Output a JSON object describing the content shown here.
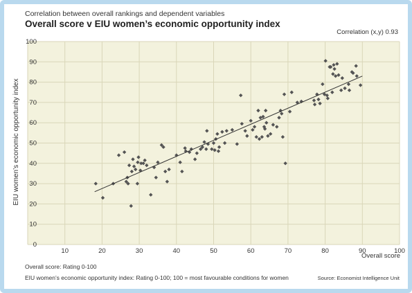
{
  "header": {
    "subtitle": "Correlation between overall rankings and dependent variables",
    "title": "Overall score v EIU women’s economic opportunity index",
    "correlation": "Correlation (x,y) 0.93"
  },
  "footer": {
    "note1": "Overall score: Rating 0-100",
    "note2": "EIU women’s economic opportunity index: Rating 0-100; 100 = most favourable conditions for women",
    "source": "Source: Economist Intelligence Unit"
  },
  "colors": {
    "plot_bg": "#f3f2dd",
    "grid": "#d9d6b8",
    "marker": "#545454",
    "trend": "#333333",
    "frame": "#b9d9ee"
  },
  "chart_data": {
    "type": "scatter",
    "xlabel": "Overall score",
    "ylabel": "EIU women’s economic opportunity index",
    "xlim": [
      0,
      100
    ],
    "ylim": [
      0,
      100
    ],
    "xticks": [
      0,
      10,
      20,
      30,
      40,
      50,
      60,
      70,
      80,
      90,
      100
    ],
    "yticks": [
      0,
      10,
      20,
      30,
      40,
      50,
      60,
      70,
      80,
      90,
      100
    ],
    "grid": true,
    "trendline": {
      "x": [
        18,
        90
      ],
      "y": [
        26,
        83
      ]
    },
    "points": [
      [
        18.3,
        30
      ],
      [
        20.2,
        23
      ],
      [
        23,
        30
      ],
      [
        24.5,
        44
      ],
      [
        26,
        45.5
      ],
      [
        26.5,
        31
      ],
      [
        26.8,
        33
      ],
      [
        27,
        30
      ],
      [
        27.3,
        39
      ],
      [
        27.8,
        19
      ],
      [
        28,
        36
      ],
      [
        28.3,
        42
      ],
      [
        28.6,
        38.5
      ],
      [
        29,
        37
      ],
      [
        29.5,
        30
      ],
      [
        29.6,
        40.5
      ],
      [
        29.8,
        43
      ],
      [
        30.3,
        36.5
      ],
      [
        30.5,
        40
      ],
      [
        31.1,
        40
      ],
      [
        31.5,
        41.5
      ],
      [
        32,
        39
      ],
      [
        33.1,
        24.5
      ],
      [
        34,
        38
      ],
      [
        34.5,
        33
      ],
      [
        35,
        40.5
      ],
      [
        36,
        49
      ],
      [
        36.5,
        48
      ],
      [
        37,
        36
      ],
      [
        37.5,
        31
      ],
      [
        38,
        37
      ],
      [
        40,
        44
      ],
      [
        41,
        40.5
      ],
      [
        41.5,
        36
      ],
      [
        42.3,
        47.5
      ],
      [
        42.5,
        46
      ],
      [
        43.5,
        45.5
      ],
      [
        44,
        47
      ],
      [
        45,
        42
      ],
      [
        45.5,
        45
      ],
      [
        46.5,
        47
      ],
      [
        47,
        48
      ],
      [
        47.5,
        50.5
      ],
      [
        48,
        47
      ],
      [
        48.2,
        56
      ],
      [
        48.5,
        49.5
      ],
      [
        49.5,
        47
      ],
      [
        50,
        50
      ],
      [
        50.3,
        46.5
      ],
      [
        50.6,
        52
      ],
      [
        51,
        54.5
      ],
      [
        51.3,
        46
      ],
      [
        51.5,
        48
      ],
      [
        52.3,
        55.5
      ],
      [
        53,
        50
      ],
      [
        53.5,
        56
      ],
      [
        55,
        56.5
      ],
      [
        56.3,
        49.5
      ],
      [
        57.3,
        73.5
      ],
      [
        57.6,
        59.5
      ],
      [
        58.5,
        56
      ],
      [
        59,
        53.5
      ],
      [
        60,
        61
      ],
      [
        60.5,
        56.5
      ],
      [
        61,
        58
      ],
      [
        61.5,
        53
      ],
      [
        62,
        66
      ],
      [
        62.3,
        52
      ],
      [
        62.6,
        62.5
      ],
      [
        63,
        53
      ],
      [
        63.3,
        63
      ],
      [
        63.6,
        58
      ],
      [
        63.8,
        57
      ],
      [
        64,
        66
      ],
      [
        64.2,
        60
      ],
      [
        64.6,
        53.5
      ],
      [
        65.3,
        54.5
      ],
      [
        66,
        59
      ],
      [
        67,
        58
      ],
      [
        67.6,
        62.5
      ],
      [
        68,
        66
      ],
      [
        68.3,
        64.5
      ],
      [
        68.6,
        53
      ],
      [
        69,
        74
      ],
      [
        69.3,
        40
      ],
      [
        70.5,
        65.5
      ],
      [
        71,
        75
      ],
      [
        72.5,
        70
      ],
      [
        73.6,
        70.5
      ],
      [
        77,
        71
      ],
      [
        77.2,
        69
      ],
      [
        77.8,
        74
      ],
      [
        78.2,
        71.5
      ],
      [
        78.6,
        69.5
      ],
      [
        79.3,
        79
      ],
      [
        79.8,
        74
      ],
      [
        80.1,
        90.5
      ],
      [
        80.5,
        73.5
      ],
      [
        80.7,
        72
      ],
      [
        81.2,
        87.5
      ],
      [
        81.5,
        87.5
      ],
      [
        81.9,
        75
      ],
      [
        82.1,
        84
      ],
      [
        82.3,
        88.5
      ],
      [
        82.5,
        86.5
      ],
      [
        82.8,
        83
      ],
      [
        83.2,
        89
      ],
      [
        83.6,
        83.5
      ],
      [
        84.3,
        76
      ],
      [
        84.6,
        82
      ],
      [
        85.3,
        77
      ],
      [
        86.3,
        79
      ],
      [
        86.5,
        76
      ],
      [
        87.2,
        85
      ],
      [
        87.5,
        84.5
      ],
      [
        88.3,
        88
      ],
      [
        88.5,
        83
      ],
      [
        89.5,
        78.5
      ]
    ]
  }
}
